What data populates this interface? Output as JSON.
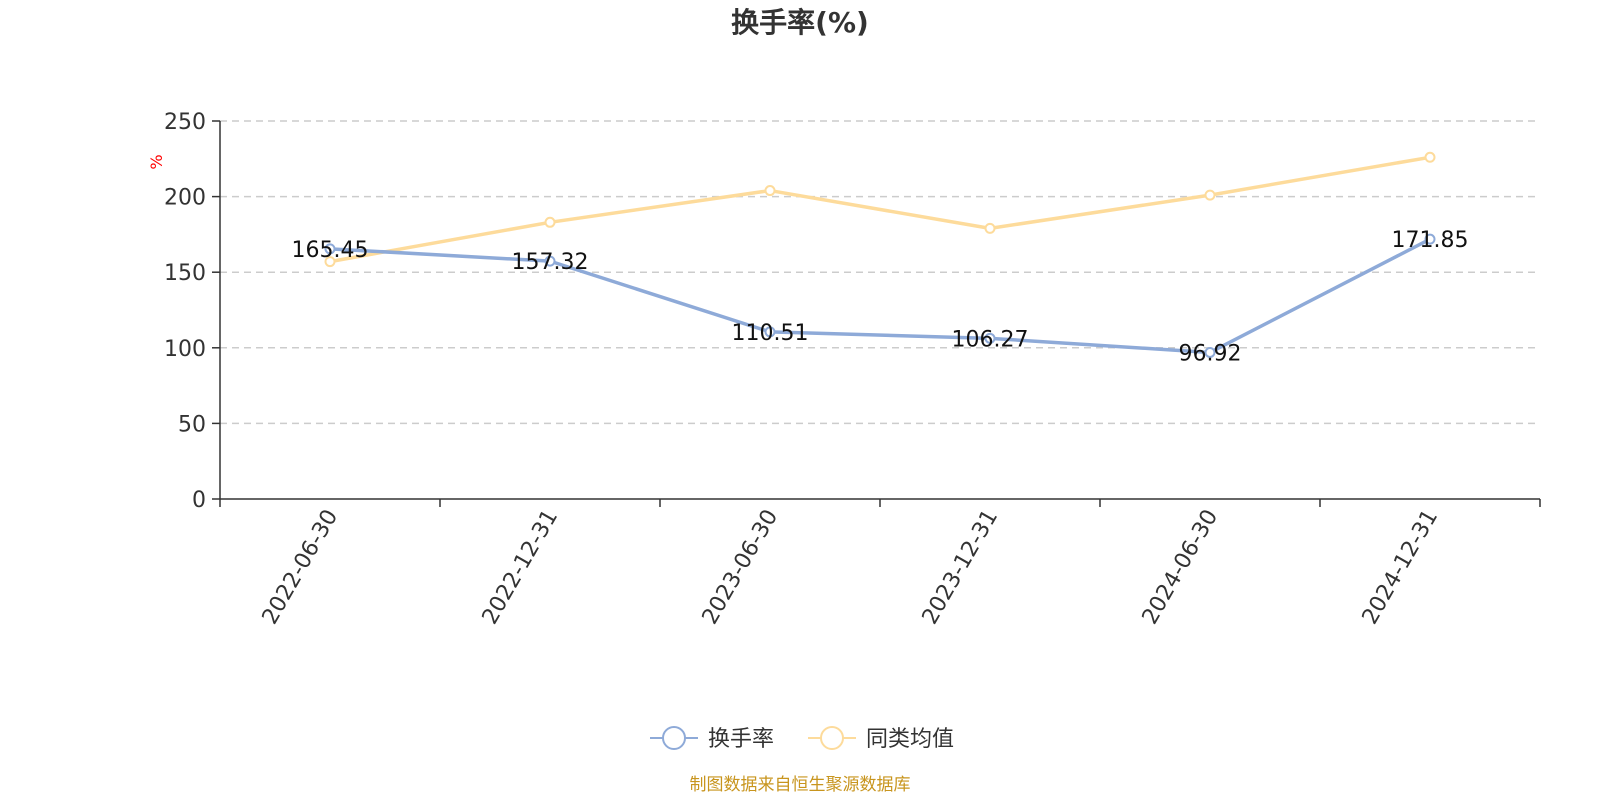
{
  "chart_data": {
    "type": "line",
    "title": "换手率(%)",
    "xlabel": "",
    "ylabel": "%",
    "ylim": [
      0,
      250
    ],
    "yticks": [
      0,
      50,
      100,
      150,
      200,
      250
    ],
    "categories": [
      "2022-06-30",
      "2022-12-31",
      "2023-06-30",
      "2023-12-31",
      "2024-06-30",
      "2024-12-31"
    ],
    "series": [
      {
        "name": "换手率",
        "values": [
          165.45,
          157.32,
          110.51,
          106.27,
          96.92,
          171.85
        ],
        "labels": [
          "165.45",
          "157.32",
          "110.51",
          "106.27",
          "96.92",
          "171.85"
        ],
        "color": "#8eaad8"
      },
      {
        "name": "同类均值",
        "values": [
          157,
          183,
          204,
          179,
          201,
          226
        ],
        "color": "#fddb9b"
      }
    ],
    "grid": "horizontal-dashed",
    "legend_position": "bottom-center"
  },
  "colors": {
    "axis": "#333333",
    "grid": "#cccccc",
    "ylabel": "#ff0000",
    "source": "#c8951e"
  },
  "source_text": "制图数据来自恒生聚源数据库"
}
